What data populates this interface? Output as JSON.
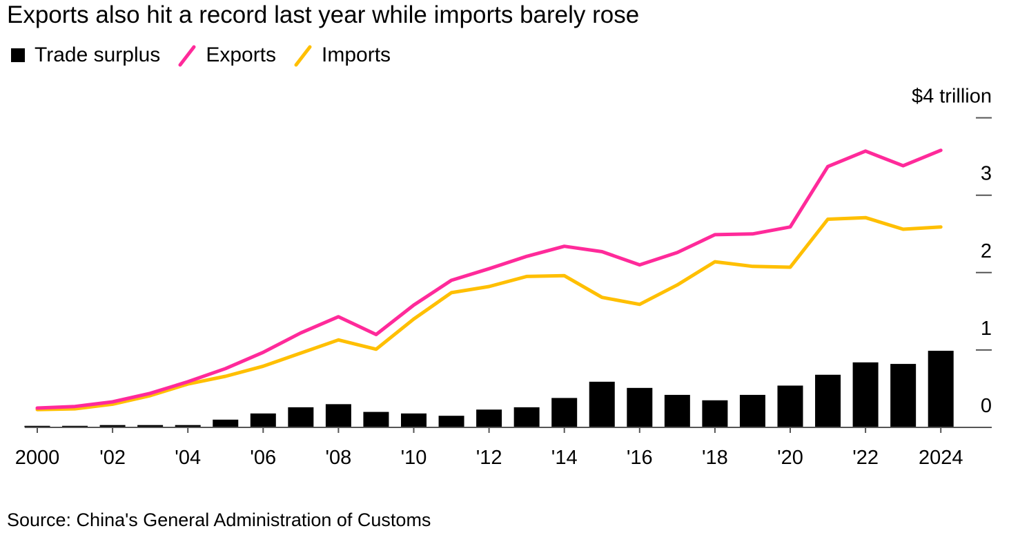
{
  "chart_data": {
    "type": "bar+line",
    "title": "Exports also hit a record last year while imports barely rose",
    "legend": [
      {
        "name": "Trade surplus",
        "color": "#000000",
        "shape": "square"
      },
      {
        "name": "Exports",
        "color": "#ff2a9a",
        "shape": "line"
      },
      {
        "name": "Imports",
        "color": "#ffbf00",
        "shape": "line"
      }
    ],
    "x": [
      2000,
      2001,
      2002,
      2003,
      2004,
      2005,
      2006,
      2007,
      2008,
      2009,
      2010,
      2011,
      2012,
      2013,
      2014,
      2015,
      2016,
      2017,
      2018,
      2019,
      2020,
      2021,
      2022,
      2023,
      2024
    ],
    "x_tick_labels": [
      "2000",
      "'02",
      "'04",
      "'06",
      "'08",
      "'10",
      "'12",
      "'14",
      "'16",
      "'18",
      "'20",
      "'22",
      "2024"
    ],
    "x_tick_years": [
      2000,
      2002,
      2004,
      2006,
      2008,
      2010,
      2012,
      2014,
      2016,
      2018,
      2020,
      2022,
      2024
    ],
    "series": [
      {
        "name": "Trade surplus",
        "type": "bar",
        "color": "#000000",
        "values": [
          0.02,
          0.02,
          0.03,
          0.03,
          0.03,
          0.1,
          0.18,
          0.26,
          0.3,
          0.2,
          0.18,
          0.15,
          0.23,
          0.26,
          0.38,
          0.59,
          0.51,
          0.42,
          0.35,
          0.42,
          0.54,
          0.68,
          0.84,
          0.82,
          0.99
        ]
      },
      {
        "name": "Exports",
        "type": "line",
        "color": "#ff2a9a",
        "values": [
          0.25,
          0.27,
          0.33,
          0.44,
          0.59,
          0.76,
          0.97,
          1.22,
          1.43,
          1.2,
          1.58,
          1.9,
          2.05,
          2.21,
          2.34,
          2.27,
          2.1,
          2.26,
          2.49,
          2.5,
          2.59,
          3.37,
          3.57,
          3.38,
          3.58
        ]
      },
      {
        "name": "Imports",
        "type": "line",
        "color": "#ffbf00",
        "values": [
          0.23,
          0.24,
          0.3,
          0.41,
          0.56,
          0.66,
          0.79,
          0.96,
          1.13,
          1.01,
          1.4,
          1.74,
          1.82,
          1.95,
          1.96,
          1.68,
          1.59,
          1.84,
          2.14,
          2.08,
          2.07,
          2.69,
          2.71,
          2.56,
          2.59
        ]
      }
    ],
    "ylim": [
      0,
      4
    ],
    "y_ticks": [
      0,
      1,
      2,
      3,
      4
    ],
    "y_tick_labels": [
      "0",
      "1",
      "2",
      "3",
      "$4 trillion"
    ],
    "ylabel": "",
    "xlabel": "",
    "grid": false,
    "legend_position": "top-left",
    "y_axis_side": "right"
  },
  "source": "Source: China's General Administration of Customs"
}
